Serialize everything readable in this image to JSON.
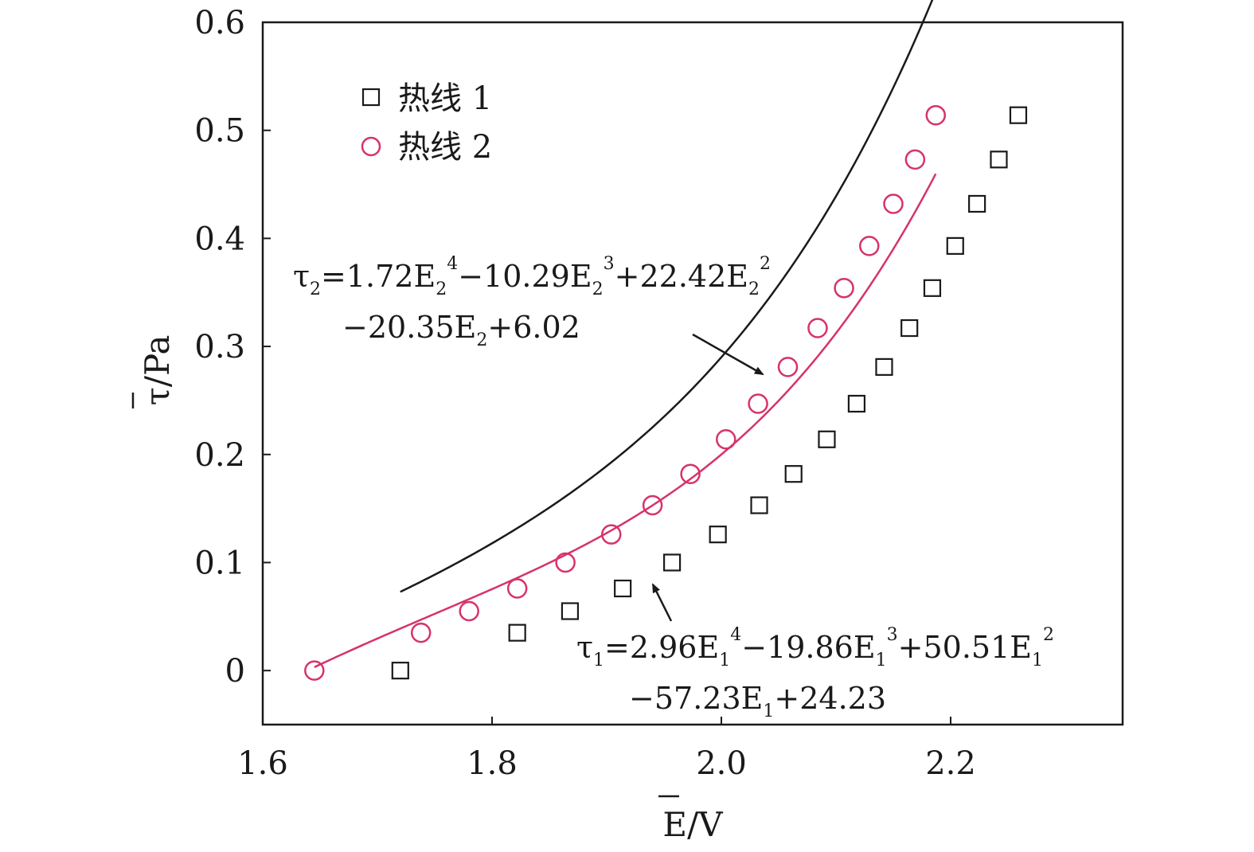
{
  "chart_data": {
    "type": "scatter",
    "xlabel": "E/V",
    "ylabel": "τ/Pa",
    "xlim": [
      1.6,
      2.35
    ],
    "ylim": [
      -0.05,
      0.6
    ],
    "xticks": [
      1.6,
      1.8,
      2.0,
      2.2
    ],
    "xtick_labels": [
      "1.6",
      "1.8",
      "2.0",
      "2.2"
    ],
    "yticks": [
      0,
      0.1,
      0.2,
      0.3,
      0.4,
      0.5,
      0.6
    ],
    "ytick_labels": [
      "0",
      "0.1",
      "0.2",
      "0.3",
      "0.4",
      "0.5",
      "0.6"
    ],
    "legend_position": "top-left",
    "series": [
      {
        "name": "热线 1",
        "marker": "square",
        "color": "#1a1a1a",
        "x": [
          1.72,
          1.822,
          1.868,
          1.914,
          1.957,
          1.997,
          2.033,
          2.063,
          2.092,
          2.118,
          2.142,
          2.164,
          2.184,
          2.204,
          2.223,
          2.242,
          2.259
        ],
        "y": [
          0.0,
          0.035,
          0.055,
          0.076,
          0.1,
          0.126,
          0.153,
          0.182,
          0.214,
          0.247,
          0.281,
          0.317,
          0.354,
          0.393,
          0.432,
          0.473,
          0.514
        ],
        "fit": {
          "coefficients": [
            2.96,
            -19.86,
            50.51,
            -57.23,
            24.23
          ],
          "x_range": [
            1.72,
            2.259
          ]
        }
      },
      {
        "name": "热线 2",
        "marker": "circle",
        "color": "#d6336c",
        "x": [
          1.645,
          1.738,
          1.78,
          1.822,
          1.864,
          1.904,
          1.94,
          1.973,
          2.004,
          2.032,
          2.058,
          2.084,
          2.107,
          2.129,
          2.15,
          2.169,
          2.187
        ],
        "y": [
          0.0,
          0.035,
          0.055,
          0.076,
          0.1,
          0.126,
          0.153,
          0.182,
          0.214,
          0.247,
          0.281,
          0.317,
          0.354,
          0.393,
          0.432,
          0.473,
          0.514
        ],
        "fit": {
          "coefficients": [
            1.72,
            -10.29,
            22.42,
            -20.35,
            6.02
          ],
          "x_range": [
            1.645,
            2.187
          ]
        }
      }
    ],
    "annotations": [
      {
        "id": "eq2",
        "line1": [
          "τ",
          "2",
          "=1.72",
          "E",
          "2",
          "4",
          "−10.29",
          "E",
          "2",
          "3",
          "+22.42",
          "E",
          "2",
          "2"
        ],
        "line2": [
          "−20.35",
          "E",
          "2",
          "+6.02"
        ]
      },
      {
        "id": "eq1",
        "line1": [
          "τ",
          "1",
          "=2.96",
          "E",
          "1",
          "4",
          "−19.86",
          "E",
          "1",
          "3",
          "+50.51",
          "E",
          "1",
          "2"
        ],
        "line2": [
          "−57.23",
          "E",
          "1",
          "+24.23"
        ]
      }
    ]
  }
}
